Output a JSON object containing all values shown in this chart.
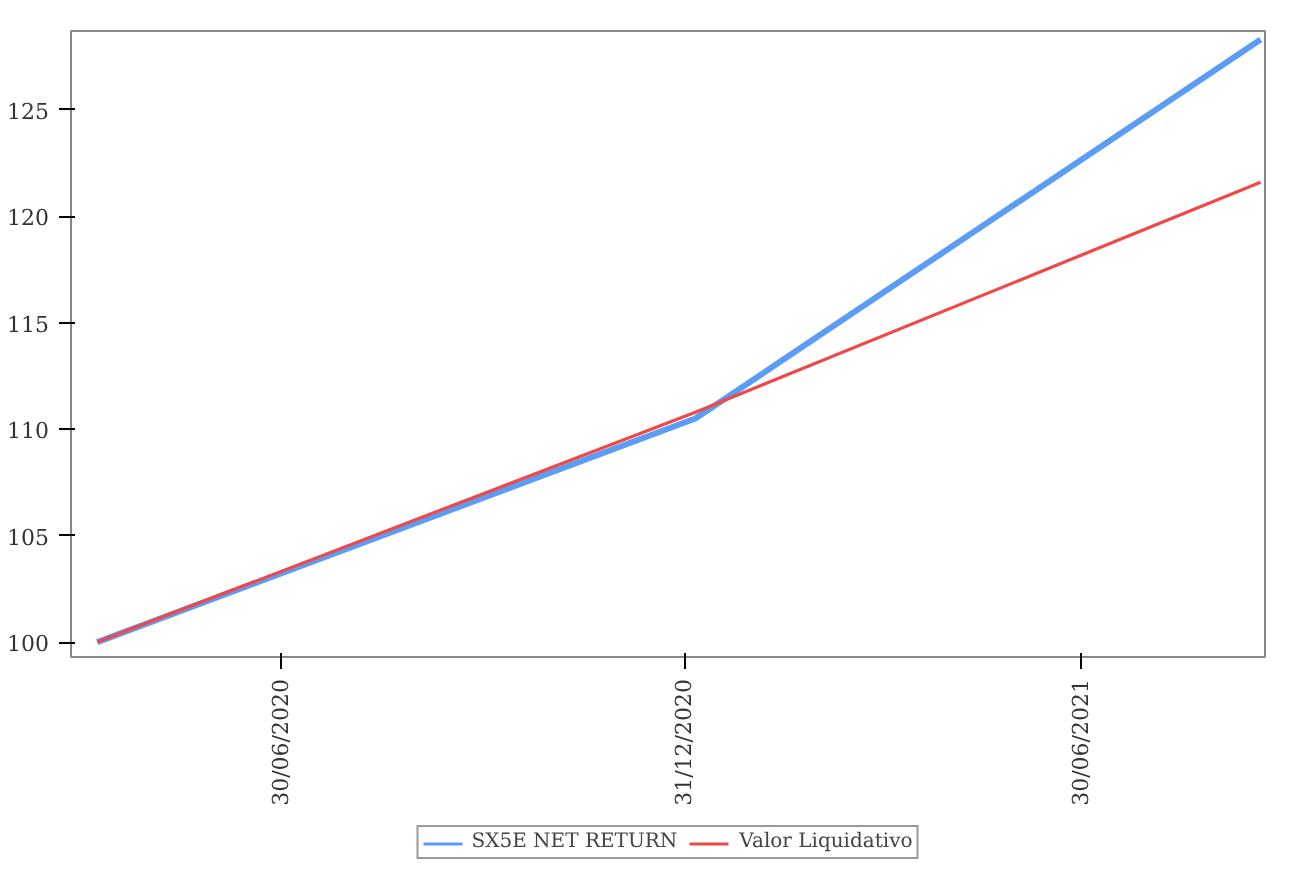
{
  "chart_data": {
    "type": "line",
    "x": [
      "2020-04-07",
      "2021-01-05",
      "2021-09-20"
    ],
    "series": [
      {
        "name": "SX5E NET RETURN",
        "color": "#5b9cf4",
        "values": [
          100,
          110.5,
          128.3
        ]
      },
      {
        "name": "Valor Liquidativo",
        "color": "#f04848",
        "values": [
          100,
          110.8,
          121.6
        ]
      }
    ],
    "xlim": [
      "2020-03-26",
      "2021-09-22"
    ],
    "xticks": [
      {
        "value": "2020-06-30",
        "label": "30/06/2020"
      },
      {
        "value": "2020-12-31",
        "label": "31/12/2020"
      },
      {
        "value": "2021-06-30",
        "label": "30/06/2021"
      }
    ],
    "ylim": [
      99.3,
      128.7
    ],
    "yticks": [
      100,
      105,
      110,
      115,
      120,
      125
    ],
    "legend": "bottom",
    "grid": false,
    "line_style": "solid"
  }
}
